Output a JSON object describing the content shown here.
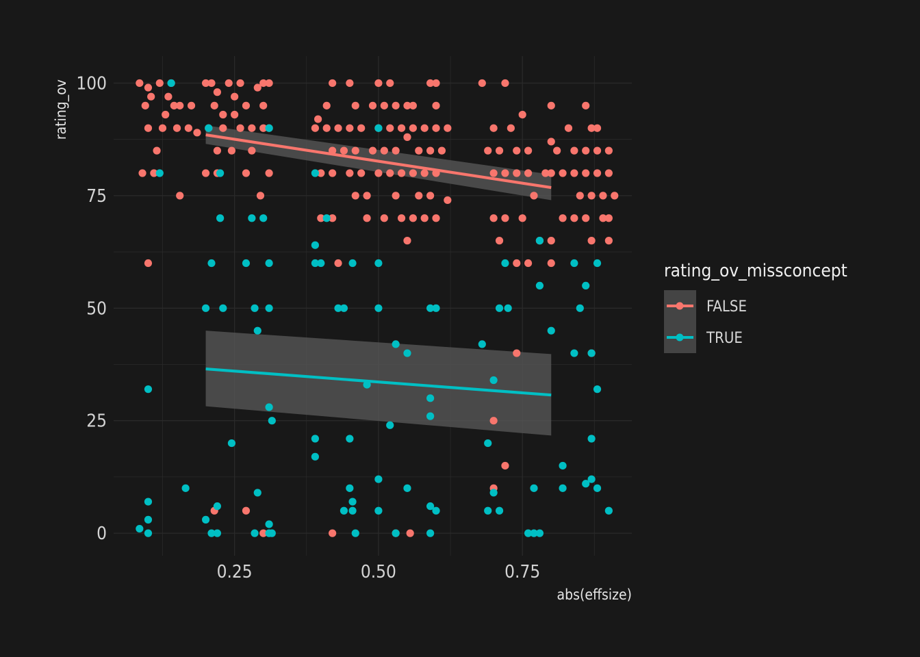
{
  "chart_data": {
    "type": "scatter",
    "xlabel": "abs(effsize)",
    "ylabel": "rating_ov",
    "xlim": [
      0.04,
      0.94
    ],
    "ylim": [
      -5,
      106
    ],
    "x_ticks": [
      0.25,
      0.5,
      0.75
    ],
    "x_tick_labels": [
      "0.25",
      "0.50",
      "0.75"
    ],
    "y_ticks": [
      0,
      25,
      50,
      75,
      100
    ],
    "y_tick_labels": [
      "0",
      "25",
      "50",
      "75",
      "100"
    ],
    "grid": true,
    "legend": {
      "title": "rating_ov_missconcept",
      "placement": "right",
      "entries": [
        "FALSE",
        "TRUE"
      ]
    },
    "colors": {
      "FALSE": "#f8766d",
      "TRUE": "#00bfc4",
      "ribbon": "#5a5a5a",
      "background": "#181818",
      "grid": "#2a2a2a"
    },
    "series": [
      {
        "name": "FALSE",
        "points": [
          [
            0.085,
            100
          ],
          [
            0.12,
            100
          ],
          [
            0.14,
            100
          ],
          [
            0.1,
            99
          ],
          [
            0.105,
            97
          ],
          [
            0.135,
            97
          ],
          [
            0.095,
            95
          ],
          [
            0.145,
            95
          ],
          [
            0.155,
            95
          ],
          [
            0.175,
            95
          ],
          [
            0.13,
            93
          ],
          [
            0.1,
            90
          ],
          [
            0.125,
            90
          ],
          [
            0.15,
            90
          ],
          [
            0.17,
            90
          ],
          [
            0.185,
            89
          ],
          [
            0.115,
            85
          ],
          [
            0.09,
            80
          ],
          [
            0.11,
            80
          ],
          [
            0.155,
            75
          ],
          [
            0.1,
            60
          ],
          [
            0.2,
            100
          ],
          [
            0.21,
            100
          ],
          [
            0.24,
            100
          ],
          [
            0.26,
            100
          ],
          [
            0.3,
            100
          ],
          [
            0.31,
            100
          ],
          [
            0.22,
            98
          ],
          [
            0.25,
            97
          ],
          [
            0.29,
            99
          ],
          [
            0.215,
            95
          ],
          [
            0.27,
            95
          ],
          [
            0.3,
            95
          ],
          [
            0.23,
            93
          ],
          [
            0.25,
            93
          ],
          [
            0.205,
            90
          ],
          [
            0.23,
            90
          ],
          [
            0.26,
            90
          ],
          [
            0.28,
            90
          ],
          [
            0.3,
            90
          ],
          [
            0.31,
            90
          ],
          [
            0.22,
            85
          ],
          [
            0.245,
            85
          ],
          [
            0.28,
            85
          ],
          [
            0.2,
            80
          ],
          [
            0.22,
            80
          ],
          [
            0.27,
            80
          ],
          [
            0.31,
            80
          ],
          [
            0.295,
            75
          ],
          [
            0.215,
            5
          ],
          [
            0.27,
            5
          ],
          [
            0.3,
            0
          ],
          [
            0.395,
            92
          ],
          [
            0.42,
            100
          ],
          [
            0.45,
            100
          ],
          [
            0.5,
            100
          ],
          [
            0.52,
            100
          ],
          [
            0.41,
            95
          ],
          [
            0.46,
            95
          ],
          [
            0.49,
            95
          ],
          [
            0.51,
            95
          ],
          [
            0.53,
            95
          ],
          [
            0.55,
            95
          ],
          [
            0.39,
            90
          ],
          [
            0.41,
            90
          ],
          [
            0.43,
            90
          ],
          [
            0.45,
            90
          ],
          [
            0.47,
            90
          ],
          [
            0.5,
            90
          ],
          [
            0.52,
            90
          ],
          [
            0.54,
            90
          ],
          [
            0.55,
            88
          ],
          [
            0.42,
            85
          ],
          [
            0.44,
            85
          ],
          [
            0.46,
            85
          ],
          [
            0.49,
            85
          ],
          [
            0.51,
            85
          ],
          [
            0.53,
            85
          ],
          [
            0.4,
            80
          ],
          [
            0.42,
            80
          ],
          [
            0.45,
            80
          ],
          [
            0.47,
            80
          ],
          [
            0.5,
            80
          ],
          [
            0.52,
            80
          ],
          [
            0.54,
            80
          ],
          [
            0.46,
            75
          ],
          [
            0.48,
            75
          ],
          [
            0.53,
            75
          ],
          [
            0.4,
            70
          ],
          [
            0.42,
            70
          ],
          [
            0.48,
            70
          ],
          [
            0.51,
            70
          ],
          [
            0.54,
            70
          ],
          [
            0.43,
            60
          ],
          [
            0.42,
            0
          ],
          [
            0.53,
            0
          ],
          [
            0.555,
            0
          ],
          [
            0.59,
            100
          ],
          [
            0.6,
            100
          ],
          [
            0.56,
            95
          ],
          [
            0.6,
            95
          ],
          [
            0.56,
            90
          ],
          [
            0.58,
            90
          ],
          [
            0.6,
            90
          ],
          [
            0.62,
            90
          ],
          [
            0.57,
            85
          ],
          [
            0.59,
            85
          ],
          [
            0.61,
            85
          ],
          [
            0.56,
            80
          ],
          [
            0.58,
            80
          ],
          [
            0.6,
            80
          ],
          [
            0.57,
            75
          ],
          [
            0.59,
            75
          ],
          [
            0.56,
            70
          ],
          [
            0.58,
            70
          ],
          [
            0.6,
            70
          ],
          [
            0.62,
            74
          ],
          [
            0.55,
            65
          ],
          [
            0.68,
            100
          ],
          [
            0.72,
            100
          ],
          [
            0.7,
            90
          ],
          [
            0.73,
            90
          ],
          [
            0.75,
            93
          ],
          [
            0.69,
            85
          ],
          [
            0.71,
            85
          ],
          [
            0.74,
            85
          ],
          [
            0.76,
            85
          ],
          [
            0.7,
            80
          ],
          [
            0.72,
            80
          ],
          [
            0.74,
            80
          ],
          [
            0.76,
            80
          ],
          [
            0.7,
            70
          ],
          [
            0.72,
            70
          ],
          [
            0.75,
            70
          ],
          [
            0.71,
            65
          ],
          [
            0.74,
            60
          ],
          [
            0.76,
            60
          ],
          [
            0.77,
            75
          ],
          [
            0.74,
            40
          ],
          [
            0.7,
            25
          ],
          [
            0.72,
            15
          ],
          [
            0.7,
            10
          ],
          [
            0.8,
            95
          ],
          [
            0.86,
            95
          ],
          [
            0.8,
            87
          ],
          [
            0.83,
            90
          ],
          [
            0.87,
            90
          ],
          [
            0.88,
            90
          ],
          [
            0.81,
            85
          ],
          [
            0.84,
            85
          ],
          [
            0.86,
            85
          ],
          [
            0.88,
            85
          ],
          [
            0.9,
            85
          ],
          [
            0.79,
            80
          ],
          [
            0.8,
            80
          ],
          [
            0.82,
            80
          ],
          [
            0.84,
            80
          ],
          [
            0.86,
            80
          ],
          [
            0.88,
            80
          ],
          [
            0.9,
            80
          ],
          [
            0.85,
            75
          ],
          [
            0.87,
            75
          ],
          [
            0.89,
            75
          ],
          [
            0.91,
            75
          ],
          [
            0.82,
            70
          ],
          [
            0.84,
            70
          ],
          [
            0.86,
            70
          ],
          [
            0.89,
            70
          ],
          [
            0.9,
            70
          ],
          [
            0.78,
            65
          ],
          [
            0.8,
            65
          ],
          [
            0.87,
            65
          ],
          [
            0.9,
            65
          ],
          [
            0.8,
            60
          ],
          [
            0.87,
            40
          ]
        ]
      },
      {
        "name": "TRUE",
        "points": [
          [
            0.14,
            100
          ],
          [
            0.12,
            80
          ],
          [
            0.1,
            32
          ],
          [
            0.1,
            7
          ],
          [
            0.1,
            3
          ],
          [
            0.1,
            0
          ],
          [
            0.085,
            1
          ],
          [
            0.165,
            10
          ],
          [
            0.205,
            90
          ],
          [
            0.225,
            80
          ],
          [
            0.225,
            70
          ],
          [
            0.21,
            60
          ],
          [
            0.2,
            50
          ],
          [
            0.23,
            50
          ],
          [
            0.28,
            70
          ],
          [
            0.3,
            70
          ],
          [
            0.27,
            60
          ],
          [
            0.31,
            60
          ],
          [
            0.285,
            50
          ],
          [
            0.31,
            50
          ],
          [
            0.29,
            45
          ],
          [
            0.245,
            20
          ],
          [
            0.31,
            28
          ],
          [
            0.315,
            25
          ],
          [
            0.31,
            2
          ],
          [
            0.31,
            0
          ],
          [
            0.315,
            0
          ],
          [
            0.22,
            0
          ],
          [
            0.21,
            0
          ],
          [
            0.22,
            6
          ],
          [
            0.2,
            3
          ],
          [
            0.29,
            9
          ],
          [
            0.285,
            0
          ],
          [
            0.31,
            90
          ],
          [
            0.39,
            80
          ],
          [
            0.41,
            70
          ],
          [
            0.39,
            64
          ],
          [
            0.39,
            60
          ],
          [
            0.4,
            60
          ],
          [
            0.455,
            60
          ],
          [
            0.43,
            50
          ],
          [
            0.44,
            50
          ],
          [
            0.5,
            60
          ],
          [
            0.48,
            33
          ],
          [
            0.39,
            21
          ],
          [
            0.39,
            17
          ],
          [
            0.45,
            21
          ],
          [
            0.45,
            10
          ],
          [
            0.455,
            7
          ],
          [
            0.44,
            5
          ],
          [
            0.455,
            5
          ],
          [
            0.46,
            0
          ],
          [
            0.5,
            5
          ],
          [
            0.5,
            12
          ],
          [
            0.5,
            90
          ],
          [
            0.5,
            50
          ],
          [
            0.53,
            42
          ],
          [
            0.55,
            40
          ],
          [
            0.52,
            24
          ],
          [
            0.55,
            10
          ],
          [
            0.53,
            0
          ],
          [
            0.59,
            30
          ],
          [
            0.59,
            26
          ],
          [
            0.59,
            6
          ],
          [
            0.6,
            5
          ],
          [
            0.59,
            0
          ],
          [
            0.59,
            50
          ],
          [
            0.6,
            50
          ],
          [
            0.68,
            42
          ],
          [
            0.7,
            34
          ],
          [
            0.69,
            20
          ],
          [
            0.7,
            9
          ],
          [
            0.69,
            5
          ],
          [
            0.71,
            5
          ],
          [
            0.71,
            50
          ],
          [
            0.725,
            50
          ],
          [
            0.72,
            60
          ],
          [
            0.78,
            55
          ],
          [
            0.78,
            65
          ],
          [
            0.77,
            10
          ],
          [
            0.76,
            0
          ],
          [
            0.77,
            0
          ],
          [
            0.78,
            0
          ],
          [
            0.8,
            45
          ],
          [
            0.82,
            15
          ],
          [
            0.82,
            10
          ],
          [
            0.84,
            60
          ],
          [
            0.85,
            50
          ],
          [
            0.84,
            40
          ],
          [
            0.86,
            55
          ],
          [
            0.87,
            40
          ],
          [
            0.88,
            60
          ],
          [
            0.88,
            32
          ],
          [
            0.87,
            21
          ],
          [
            0.86,
            11
          ],
          [
            0.87,
            12
          ],
          [
            0.88,
            10
          ],
          [
            0.9,
            5
          ]
        ]
      }
    ],
    "trend_lines": [
      {
        "name": "FALSE",
        "x": [
          0.2,
          0.8
        ],
        "y": [
          88.5,
          76.8
        ],
        "ci_lower": [
          86.5,
          74.0
        ],
        "ci_upper": [
          90.6,
          79.7
        ]
      },
      {
        "name": "TRUE",
        "x": [
          0.2,
          0.8
        ],
        "y": [
          36.5,
          30.7
        ],
        "ci_lower": [
          28.2,
          21.7
        ],
        "ci_upper": [
          45.0,
          39.8
        ]
      }
    ]
  }
}
